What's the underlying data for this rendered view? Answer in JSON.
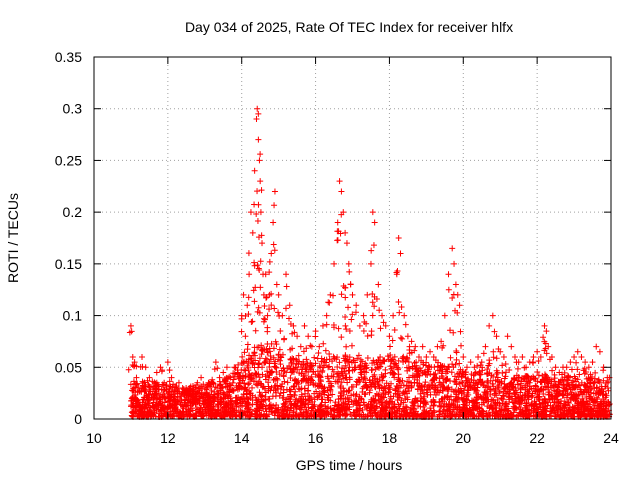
{
  "chart_data": {
    "type": "scatter",
    "title": "Day 034 of 2025, Rate Of TEC Index for receiver hlfx",
    "xlabel": "GPS time / hours",
    "ylabel": "ROTI / TECUs",
    "xlim": [
      10,
      24
    ],
    "ylim": [
      0,
      0.35
    ],
    "x_ticks": [
      10,
      12,
      14,
      16,
      18,
      20,
      22,
      24
    ],
    "x_tick_labels": [
      "10",
      "12",
      "14",
      "16",
      "18",
      "20",
      "22",
      "24"
    ],
    "y_ticks": [
      0,
      0.05,
      0.1,
      0.15,
      0.2,
      0.25,
      0.3,
      0.35
    ],
    "y_tick_labels": [
      "0",
      "0.05",
      "0.1",
      "0.15",
      "0.2",
      "0.25",
      "0.3",
      "0.35"
    ],
    "grid": true,
    "marker": "+",
    "series": [
      {
        "name": "ROTI",
        "color": "#ff0000",
        "x": [
          11.0,
          11.05,
          11.1,
          11.15,
          11.2,
          11.3,
          11.4,
          11.5,
          11.6,
          11.7,
          11.8,
          11.9,
          12.0,
          12.1,
          12.2,
          12.3,
          12.4,
          12.5,
          12.6,
          12.7,
          12.8,
          12.9,
          13.0,
          13.1,
          13.2,
          13.3,
          13.4,
          13.5,
          13.6,
          13.7,
          13.8,
          13.9,
          14.0,
          14.05,
          14.1,
          14.15,
          14.2,
          14.25,
          14.3,
          14.35,
          14.4,
          14.42,
          14.45,
          14.48,
          14.5,
          14.52,
          14.55,
          14.6,
          14.65,
          14.7,
          14.75,
          14.8,
          14.85,
          14.9,
          14.95,
          15.0,
          15.1,
          15.2,
          15.3,
          15.4,
          15.5,
          15.6,
          15.7,
          15.8,
          15.9,
          16.0,
          16.1,
          16.2,
          16.3,
          16.4,
          16.5,
          16.6,
          16.65,
          16.7,
          16.75,
          16.8,
          16.85,
          16.9,
          16.95,
          17.0,
          17.1,
          17.2,
          17.3,
          17.4,
          17.5,
          17.55,
          17.6,
          17.7,
          17.8,
          17.9,
          18.0,
          18.1,
          18.2,
          18.25,
          18.3,
          18.4,
          18.5,
          18.6,
          18.7,
          18.8,
          18.9,
          19.0,
          19.1,
          19.2,
          19.3,
          19.4,
          19.5,
          19.6,
          19.7,
          19.75,
          19.8,
          19.85,
          19.9,
          20.0,
          20.1,
          20.2,
          20.3,
          20.4,
          20.5,
          20.6,
          20.7,
          20.8,
          20.9,
          21.0,
          21.1,
          21.2,
          21.3,
          21.4,
          21.5,
          21.6,
          21.7,
          21.8,
          21.9,
          22.0,
          22.1,
          22.2,
          22.25,
          22.3,
          22.4,
          22.5,
          22.6,
          22.7,
          22.8,
          22.9,
          23.0,
          23.1,
          23.2,
          23.3,
          23.4,
          23.5,
          23.6,
          23.7,
          23.8,
          23.9,
          24.0
        ],
        "y": [
          0.09,
          0.06,
          0.055,
          0.04,
          0.03,
          0.06,
          0.05,
          0.04,
          0.03,
          0.045,
          0.05,
          0.035,
          0.055,
          0.04,
          0.03,
          0.035,
          0.03,
          0.028,
          0.03,
          0.03,
          0.035,
          0.04,
          0.03,
          0.035,
          0.038,
          0.055,
          0.04,
          0.045,
          0.05,
          0.04,
          0.05,
          0.045,
          0.1,
          0.12,
          0.08,
          0.11,
          0.14,
          0.2,
          0.18,
          0.24,
          0.29,
          0.3,
          0.295,
          0.25,
          0.23,
          0.2,
          0.17,
          0.12,
          0.14,
          0.1,
          0.12,
          0.16,
          0.19,
          0.22,
          0.13,
          0.12,
          0.1,
          0.14,
          0.11,
          0.09,
          0.08,
          0.07,
          0.09,
          0.08,
          0.07,
          0.085,
          0.07,
          0.09,
          0.1,
          0.12,
          0.15,
          0.19,
          0.23,
          0.22,
          0.2,
          0.18,
          0.17,
          0.15,
          0.13,
          0.12,
          0.11,
          0.09,
          0.1,
          0.12,
          0.15,
          0.2,
          0.19,
          0.13,
          0.1,
          0.09,
          0.08,
          0.1,
          0.14,
          0.175,
          0.16,
          0.1,
          0.08,
          0.075,
          0.07,
          0.06,
          0.07,
          0.06,
          0.065,
          0.06,
          0.07,
          0.075,
          0.1,
          0.14,
          0.165,
          0.15,
          0.13,
          0.12,
          0.11,
          0.06,
          0.05,
          0.055,
          0.05,
          0.06,
          0.055,
          0.07,
          0.09,
          0.1,
          0.08,
          0.065,
          0.06,
          0.08,
          0.07,
          0.06,
          0.055,
          0.06,
          0.05,
          0.055,
          0.06,
          0.065,
          0.06,
          0.09,
          0.085,
          0.07,
          0.06,
          0.05,
          0.045,
          0.05,
          0.05,
          0.055,
          0.06,
          0.065,
          0.06,
          0.055,
          0.05,
          0.055,
          0.07,
          0.065,
          0.05,
          0.04,
          0.045
        ]
      }
    ],
    "density_envelope": {
      "x": [
        11.0,
        11.5,
        12.0,
        12.5,
        13.0,
        13.5,
        14.0,
        14.5,
        15.0,
        15.5,
        16.0,
        16.5,
        17.0,
        17.5,
        18.0,
        18.5,
        19.0,
        19.5,
        20.0,
        20.5,
        21.0,
        21.5,
        22.0,
        22.5,
        23.0,
        23.5,
        24.0
      ],
      "y": [
        0.035,
        0.035,
        0.032,
        0.03,
        0.032,
        0.035,
        0.055,
        0.07,
        0.065,
        0.055,
        0.055,
        0.06,
        0.06,
        0.055,
        0.055,
        0.06,
        0.05,
        0.055,
        0.045,
        0.045,
        0.045,
        0.04,
        0.04,
        0.04,
        0.04,
        0.038,
        0.035
      ]
    }
  }
}
